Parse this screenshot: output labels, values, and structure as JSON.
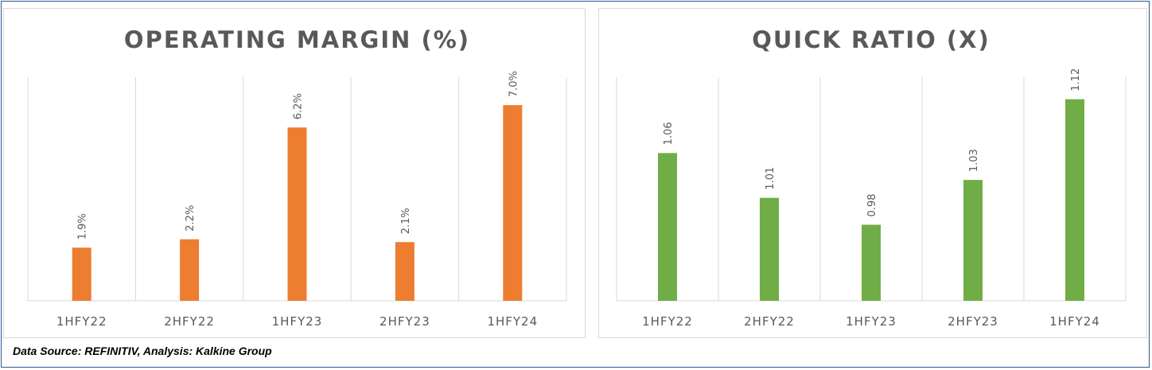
{
  "chart_data": [
    {
      "type": "bar",
      "title": "OPERATING MARGIN (%)",
      "categories": [
        "1HFY22",
        "2HFY22",
        "1HFY23",
        "2HFY23",
        "1HFY24"
      ],
      "values": [
        1.9,
        2.2,
        6.2,
        2.1,
        7.0
      ],
      "data_labels": [
        "1.9%",
        "2.2%",
        "6.2%",
        "2.1%",
        "7.0%"
      ],
      "color": "#ed7d31",
      "ylim": [
        0,
        8.0
      ],
      "grid": "vertical",
      "xlabel": "",
      "ylabel": ""
    },
    {
      "type": "bar",
      "title": "QUICK RATIO (X)",
      "categories": [
        "1HFY22",
        "2HFY22",
        "1HFY23",
        "2HFY23",
        "1HFY24"
      ],
      "values": [
        1.06,
        1.01,
        0.98,
        1.03,
        1.12
      ],
      "data_labels": [
        "1.06",
        "1.01",
        "0.98",
        "1.03",
        "1.12"
      ],
      "color": "#70ad47",
      "ylim": [
        0.8952,
        1.1446
      ],
      "grid": "vertical",
      "xlabel": "",
      "ylabel": ""
    }
  ],
  "footer": {
    "source_text": "Data Source: REFINITIV, Analysis: Kalkine Group"
  }
}
